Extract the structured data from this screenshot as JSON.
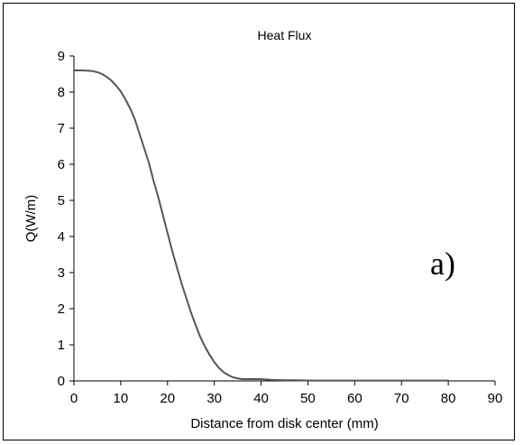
{
  "chart_data": {
    "type": "line",
    "title": "Heat Flux",
    "xlabel": "Distance from disk center (mm)",
    "ylabel": "Q(W/m)",
    "xlim": [
      0,
      90
    ],
    "ylim": [
      0,
      9
    ],
    "xticks": [
      0,
      10,
      20,
      30,
      40,
      50,
      60,
      70,
      80,
      90
    ],
    "yticks": [
      0,
      1,
      2,
      3,
      4,
      5,
      6,
      7,
      8,
      9
    ],
    "grid": false,
    "line_color": "#555555",
    "annotation": "a)",
    "series": [
      {
        "x": [
          0,
          2,
          4,
          5,
          6,
          7,
          8,
          9,
          10,
          11,
          12,
          13,
          14,
          15,
          16,
          17,
          18,
          19,
          20,
          21,
          22,
          23,
          24,
          25,
          26,
          27,
          28,
          29,
          30,
          31,
          32,
          33,
          34,
          35,
          36,
          38,
          40,
          42,
          45,
          48,
          50,
          55,
          60,
          70,
          80
        ],
        "y": [
          8.6,
          8.6,
          8.58,
          8.55,
          8.5,
          8.42,
          8.32,
          8.18,
          8.02,
          7.8,
          7.55,
          7.25,
          6.85,
          6.45,
          6.05,
          5.55,
          5.1,
          4.6,
          4.1,
          3.6,
          3.15,
          2.7,
          2.3,
          1.9,
          1.55,
          1.22,
          0.95,
          0.72,
          0.52,
          0.36,
          0.24,
          0.16,
          0.1,
          0.07,
          0.05,
          0.05,
          0.05,
          0.03,
          0.02,
          0.02,
          0.01,
          0.01,
          0.01,
          0.01,
          0.01
        ]
      }
    ]
  }
}
